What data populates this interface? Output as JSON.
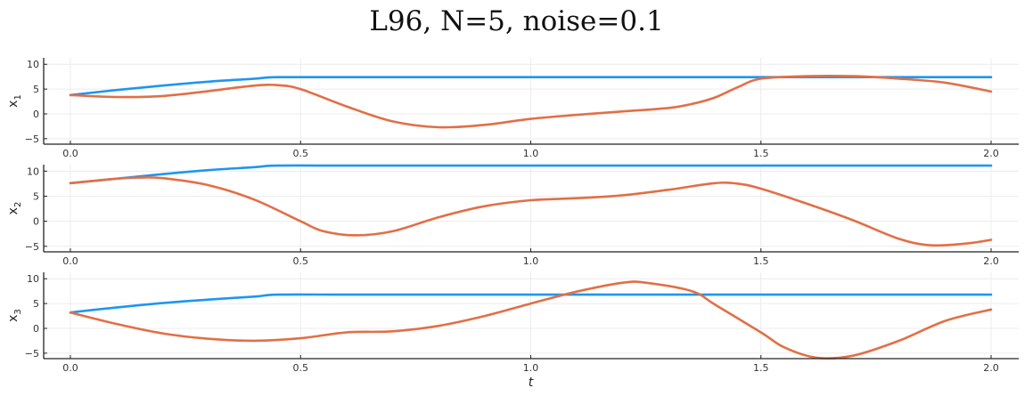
{
  "title": "L96, N=5, noise=0.1",
  "colors": {
    "series_1": "#1e96f0",
    "series_2": "#e26f46",
    "grid": "#ececec",
    "axis": "#222222"
  },
  "chart_data": [
    {
      "type": "line",
      "title": "L96, N=5, noise=0.1",
      "ylabel": "x_1",
      "ylabel_base": "x",
      "ylabel_sub": "1",
      "xlabel": "",
      "xlim": [
        -0.058,
        2.06
      ],
      "ylim": [
        -6.1,
        11.3
      ],
      "xticks": [
        0.0,
        0.5,
        1.0,
        1.5,
        2.0
      ],
      "xtick_labels": [
        "0.0",
        "0.5",
        "1.0",
        "1.5",
        "2.0"
      ],
      "yticks": [
        10,
        5,
        0,
        -5
      ],
      "ytick_labels": [
        "10",
        "5",
        "0",
        "−5"
      ],
      "grid": true,
      "legend": "none",
      "series": [
        {
          "name": "series_1",
          "color": "#1e96f0",
          "x": [
            0.0,
            0.1,
            0.2,
            0.3,
            0.4,
            0.45,
            0.6,
            0.8,
            1.0,
            1.2,
            1.4,
            1.6,
            1.8,
            2.0
          ],
          "y": [
            3.8,
            4.8,
            5.7,
            6.5,
            7.1,
            7.4,
            7.4,
            7.4,
            7.4,
            7.4,
            7.4,
            7.4,
            7.4,
            7.4
          ]
        },
        {
          "name": "series_2",
          "color": "#e26f46",
          "x": [
            0.0,
            0.1,
            0.2,
            0.3,
            0.4,
            0.45,
            0.5,
            0.6,
            0.7,
            0.8,
            0.9,
            1.0,
            1.1,
            1.2,
            1.3,
            1.35,
            1.4,
            1.45,
            1.5,
            1.6,
            1.7,
            1.8,
            1.9,
            2.0
          ],
          "y": [
            3.8,
            3.4,
            3.6,
            4.6,
            5.7,
            5.8,
            5.0,
            1.5,
            -1.5,
            -2.7,
            -2.2,
            -1.0,
            -0.2,
            0.5,
            1.2,
            2.0,
            3.3,
            5.4,
            7.1,
            7.6,
            7.6,
            7.1,
            6.3,
            4.5
          ]
        }
      ]
    },
    {
      "type": "line",
      "ylabel": "x_2",
      "ylabel_base": "x",
      "ylabel_sub": "2",
      "xlabel": "",
      "xlim": [
        -0.058,
        2.06
      ],
      "ylim": [
        -6.1,
        11.3
      ],
      "xticks": [
        0.0,
        0.5,
        1.0,
        1.5,
        2.0
      ],
      "xtick_labels": [
        "0.0",
        "0.5",
        "1.0",
        "1.5",
        "2.0"
      ],
      "yticks": [
        10,
        5,
        0,
        -5
      ],
      "ytick_labels": [
        "10",
        "5",
        "0",
        "−5"
      ],
      "grid": true,
      "legend": "none",
      "series": [
        {
          "name": "series_1",
          "color": "#1e96f0",
          "x": [
            0.0,
            0.1,
            0.2,
            0.3,
            0.4,
            0.45,
            0.6,
            0.8,
            1.0,
            1.2,
            1.4,
            1.6,
            1.8,
            2.0
          ],
          "y": [
            7.6,
            8.5,
            9.4,
            10.2,
            10.8,
            11.1,
            11.1,
            11.1,
            11.1,
            11.1,
            11.1,
            11.1,
            11.1,
            11.1
          ]
        },
        {
          "name": "series_2",
          "color": "#e26f46",
          "x": [
            0.0,
            0.1,
            0.15,
            0.2,
            0.3,
            0.4,
            0.5,
            0.55,
            0.62,
            0.7,
            0.8,
            0.9,
            1.0,
            1.1,
            1.2,
            1.3,
            1.4,
            1.45,
            1.5,
            1.6,
            1.7,
            1.8,
            1.87,
            1.95,
            2.0
          ],
          "y": [
            7.6,
            8.5,
            8.7,
            8.6,
            7.2,
            4.3,
            0.0,
            -2.0,
            -2.8,
            -2.0,
            0.8,
            3.0,
            4.2,
            4.6,
            5.2,
            6.3,
            7.6,
            7.5,
            6.5,
            3.5,
            0.2,
            -3.5,
            -4.8,
            -4.4,
            -3.7
          ]
        }
      ]
    },
    {
      "type": "line",
      "ylabel": "x_3",
      "ylabel_base": "x",
      "ylabel_sub": "3",
      "xlabel": "t",
      "xlim": [
        -0.058,
        2.06
      ],
      "ylim": [
        -6.1,
        11.3
      ],
      "xticks": [
        0.0,
        0.5,
        1.0,
        1.5,
        2.0
      ],
      "xtick_labels": [
        "0.0",
        "0.5",
        "1.0",
        "1.5",
        "2.0"
      ],
      "yticks": [
        10,
        5,
        0,
        -5
      ],
      "ytick_labels": [
        "10",
        "5",
        "0",
        "−5"
      ],
      "grid": true,
      "legend": "none",
      "series": [
        {
          "name": "series_1",
          "color": "#1e96f0",
          "x": [
            0.0,
            0.1,
            0.2,
            0.3,
            0.4,
            0.45,
            0.6,
            0.8,
            1.0,
            1.2,
            1.4,
            1.6,
            1.8,
            2.0
          ],
          "y": [
            3.2,
            4.2,
            5.1,
            5.8,
            6.4,
            6.8,
            6.8,
            6.8,
            6.8,
            6.8,
            6.8,
            6.8,
            6.8,
            6.8
          ]
        },
        {
          "name": "series_2",
          "color": "#e26f46",
          "x": [
            0.0,
            0.1,
            0.2,
            0.3,
            0.4,
            0.5,
            0.6,
            0.7,
            0.8,
            0.9,
            1.0,
            1.1,
            1.2,
            1.25,
            1.35,
            1.4,
            1.5,
            1.55,
            1.62,
            1.7,
            1.8,
            1.9,
            2.0
          ],
          "y": [
            3.2,
            0.9,
            -1.0,
            -2.1,
            -2.5,
            -2.0,
            -0.8,
            -0.6,
            0.5,
            2.5,
            5.0,
            7.4,
            9.2,
            9.2,
            7.5,
            4.8,
            -0.8,
            -3.8,
            -5.9,
            -5.5,
            -2.5,
            1.5,
            3.8
          ]
        }
      ]
    }
  ]
}
